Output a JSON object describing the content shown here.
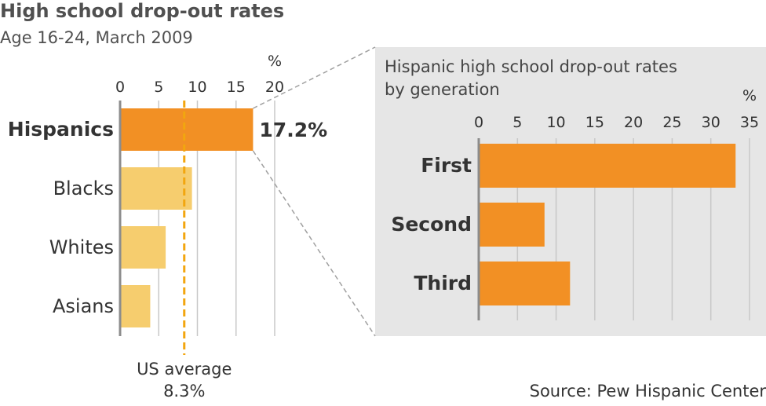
{
  "title": "High school drop-out rates",
  "subtitle": "Age 16-24, March 2009",
  "source": "Source: Pew Hispanic Center",
  "colors": {
    "highlight": "#f29024",
    "bar": "#f6cd6e",
    "average_line": "#f2a60f",
    "grid": "#c8c8c8",
    "axis": "#8c8c8c",
    "inset_background": "#e6e6e6",
    "connector": "#a0a0a0"
  },
  "chart_data": [
    {
      "type": "bar",
      "orientation": "horizontal",
      "title": "High school drop-out rates",
      "subtitle": "Age 16-24, March 2009",
      "unit": "%",
      "categories": [
        "Hispanics",
        "Blacks",
        "Whites",
        "Asians"
      ],
      "values": [
        17.2,
        9.3,
        5.9,
        3.9
      ],
      "highlighted_category": "Hispanics",
      "value_label": "17.2%",
      "xlim": [
        0,
        20
      ],
      "xticks": [
        0,
        5,
        10,
        15,
        20
      ],
      "grid": true,
      "reference_line": {
        "label": "US average",
        "value_label": "8.3%",
        "value": 8.3
      }
    },
    {
      "type": "bar",
      "orientation": "horizontal",
      "title": "Hispanic high school drop-out rates",
      "title_line2": "by generation",
      "unit": "%",
      "categories": [
        "First",
        "Second",
        "Third"
      ],
      "values": [
        33.2,
        8.5,
        11.8
      ],
      "xlim": [
        0,
        35
      ],
      "xticks": [
        0,
        5,
        10,
        15,
        20,
        25,
        30,
        35
      ],
      "grid": true
    }
  ]
}
